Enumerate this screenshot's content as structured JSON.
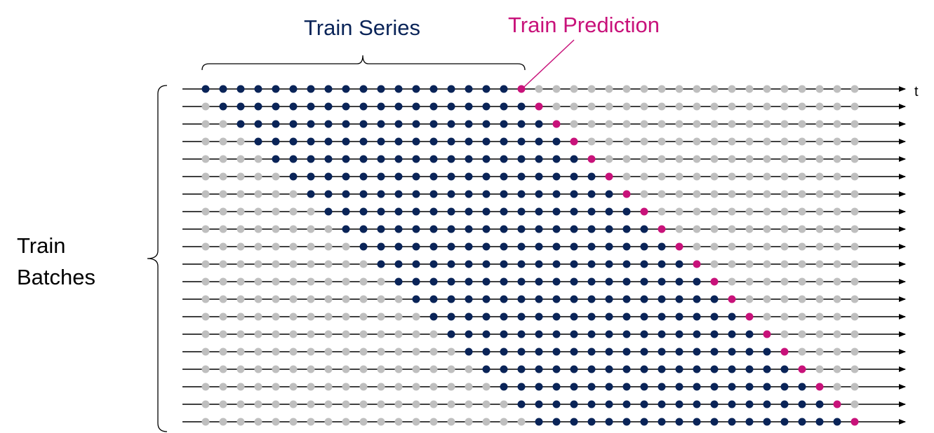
{
  "labels": {
    "train_series": "Train Series",
    "train_prediction": "Train Prediction",
    "train_batches_line1": "Train",
    "train_batches_line2": "Batches",
    "time_axis": "t"
  },
  "colors": {
    "series": "#0a2458",
    "prediction": "#c8127a",
    "inactive": "#bfbfbf",
    "axis": "#000000",
    "series_label": "#0a2458",
    "prediction_label": "#c8127a",
    "batches_label": "#000000"
  },
  "grid": {
    "rows": 20,
    "points_per_row": 38,
    "window_length": 18,
    "window_step": 1
  }
}
